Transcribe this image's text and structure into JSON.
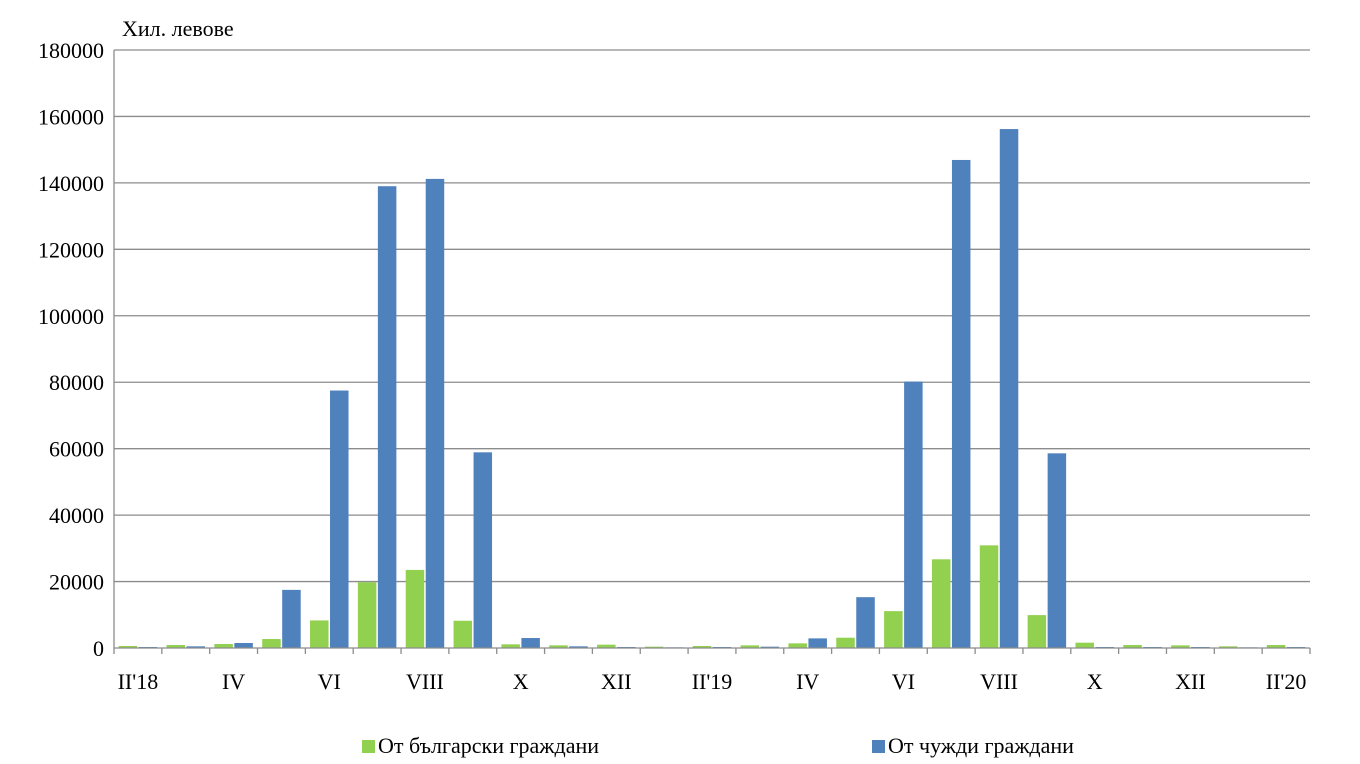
{
  "chart_data": {
    "type": "bar",
    "ylabel": "Хил. левове",
    "ylim": [
      0,
      180000
    ],
    "yticks": [
      0,
      20000,
      40000,
      60000,
      80000,
      100000,
      120000,
      140000,
      160000,
      180000
    ],
    "grid": true,
    "legend_position": "bottom",
    "categories": [
      "II'18",
      "III",
      "IV",
      "V",
      "VI",
      "VII",
      "VIII",
      "IX",
      "X",
      "XI",
      "XII",
      "I'19",
      "II'19",
      "III",
      "IV",
      "V",
      "VI",
      "VII",
      "VIII",
      "IX",
      "X",
      "XI",
      "XII",
      "I'20",
      "II'20"
    ],
    "category_labels": [
      "II'18",
      "",
      "IV",
      "",
      "VI",
      "",
      "VIII",
      "",
      "X",
      "",
      "XII",
      "",
      "II'19",
      "",
      "IV",
      "",
      "VI",
      "",
      "VIII",
      "",
      "X",
      "",
      "XII",
      "",
      "II'20"
    ],
    "series": [
      {
        "name": "От български граждани",
        "color": "#92d050",
        "values": [
          600,
          900,
          1200,
          2700,
          8300,
          19800,
          23500,
          8200,
          1100,
          800,
          1000,
          400,
          600,
          800,
          1400,
          3100,
          11100,
          26700,
          30900,
          9900,
          1600,
          900,
          800,
          500,
          900
        ]
      },
      {
        "name": "От чужди граждани",
        "color": "#4f81bd",
        "values": [
          300,
          500,
          1500,
          17500,
          77500,
          139000,
          141200,
          58900,
          3000,
          500,
          300,
          200,
          300,
          400,
          2900,
          15300,
          80200,
          146900,
          156200,
          58600,
          300,
          300,
          300,
          200,
          300
        ]
      }
    ]
  }
}
